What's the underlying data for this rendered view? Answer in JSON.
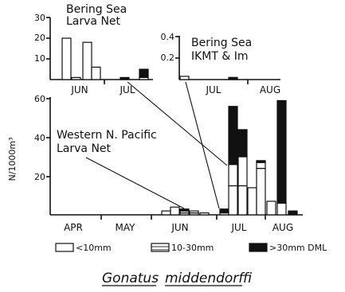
{
  "figure": {
    "caption_genus": "Gonatus",
    "caption_species": "middendorffi",
    "y_axis_label": "N/1000m³",
    "legend": {
      "small_label": "<10mm",
      "mid_label": "10-30mm",
      "large_label": ">30mm DML"
    }
  },
  "chart_data": [
    {
      "id": "bering_larva",
      "type": "bar",
      "stacked": true,
      "title_line1": "Bering Sea",
      "title_line2": "Larva Net",
      "ylim": [
        0,
        30
      ],
      "yticks": [
        10,
        20,
        30
      ],
      "month_labels": [
        "JUN",
        "JUL"
      ],
      "segments": [
        "<10mm",
        "10-30mm",
        ">30mm DML"
      ],
      "bars": [
        {
          "small": 20,
          "mid": 0,
          "large": 0
        },
        {
          "small": 1,
          "mid": 0,
          "large": 0
        },
        {
          "small": 18,
          "mid": 0,
          "large": 0
        },
        {
          "small": 6,
          "mid": 0,
          "large": 0
        },
        {
          "small": 0,
          "mid": 0,
          "large": 1
        },
        {
          "small": 0,
          "mid": 1,
          "large": 4
        }
      ]
    },
    {
      "id": "bering_ikmt",
      "type": "bar",
      "stacked": true,
      "title_line1": "Bering Sea",
      "title_line2": "IKMT & Im",
      "ylim": [
        0,
        0.4
      ],
      "yticks": [
        0.2,
        0.4
      ],
      "month_labels": [
        "JUL",
        "AUG"
      ],
      "segments": [
        "<10mm",
        "10-30mm",
        ">30mm DML"
      ],
      "bars": [
        {
          "small": 0.03,
          "mid": 0,
          "large": 0
        },
        {
          "small": 0,
          "mid": 0,
          "large": 0.02
        }
      ]
    },
    {
      "id": "western_pacific",
      "type": "bar",
      "stacked": true,
      "title_line1": "Western N. Pacific",
      "title_line2": "Larva Net",
      "ylim": [
        0,
        60
      ],
      "yticks": [
        20,
        40,
        60
      ],
      "month_labels": [
        "APR",
        "MAY",
        "JUN",
        "JUL",
        "AUG"
      ],
      "segments": [
        "<10mm",
        "10-30mm",
        ">30mm DML"
      ],
      "bars": [
        {
          "small": 2,
          "mid": 0,
          "large": 0
        },
        {
          "small": 0,
          "mid": 4,
          "large": 0
        },
        {
          "small": 1,
          "mid": 1,
          "large": 1
        },
        {
          "small": 1,
          "mid": 1,
          "large": 0
        },
        {
          "small": 1,
          "mid": 0,
          "large": 0
        },
        {
          "small": 1,
          "mid": 0,
          "large": 2
        },
        {
          "small": 15,
          "mid": 11,
          "large": 30
        },
        {
          "small": 15,
          "mid": 15,
          "large": 14
        },
        {
          "small": 14,
          "mid": 0,
          "large": 0
        },
        {
          "small": 24,
          "mid": 3,
          "large": 1
        },
        {
          "small": 7,
          "mid": 0,
          "large": 0
        },
        {
          "small": 0,
          "mid": 6,
          "large": 53
        },
        {
          "small": 0,
          "mid": 0,
          "large": 2
        }
      ]
    }
  ]
}
